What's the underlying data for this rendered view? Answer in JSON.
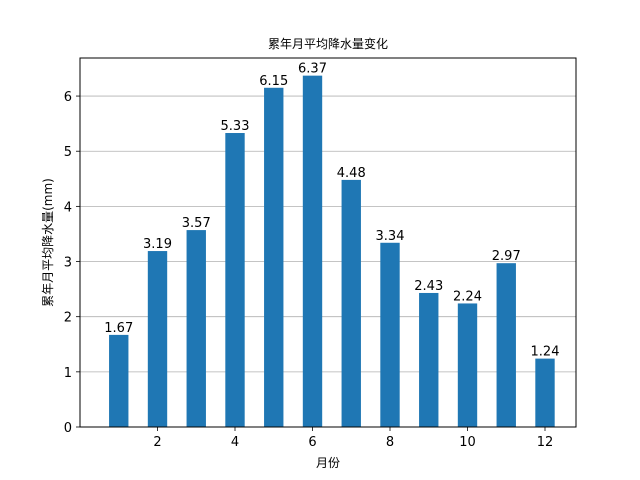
{
  "chart_data": {
    "type": "bar",
    "title": "累年月平均降水量变化",
    "xlabel": "月份",
    "ylabel": "累年月平均降水量(mm)",
    "categories": [
      1,
      2,
      3,
      4,
      5,
      6,
      7,
      8,
      9,
      10,
      11,
      12
    ],
    "values": [
      1.67,
      3.19,
      3.57,
      5.33,
      6.15,
      6.37,
      4.48,
      3.34,
      2.43,
      2.24,
      2.97,
      1.24
    ],
    "data_labels": [
      "1.67",
      "3.19",
      "3.57",
      "5.33",
      "6.15",
      "6.37",
      "4.48",
      "3.34",
      "2.43",
      "2.24",
      "2.97",
      "1.24"
    ],
    "xticks": [
      2,
      4,
      6,
      8,
      10,
      12
    ],
    "yticks": [
      0,
      1,
      2,
      3,
      4,
      5,
      6
    ],
    "xlim": [
      0.0,
      12.8
    ],
    "ylim": [
      0,
      6.69
    ],
    "grid": "y",
    "bar_color": "#1f77b4",
    "grid_color": "#b0b0b0"
  }
}
